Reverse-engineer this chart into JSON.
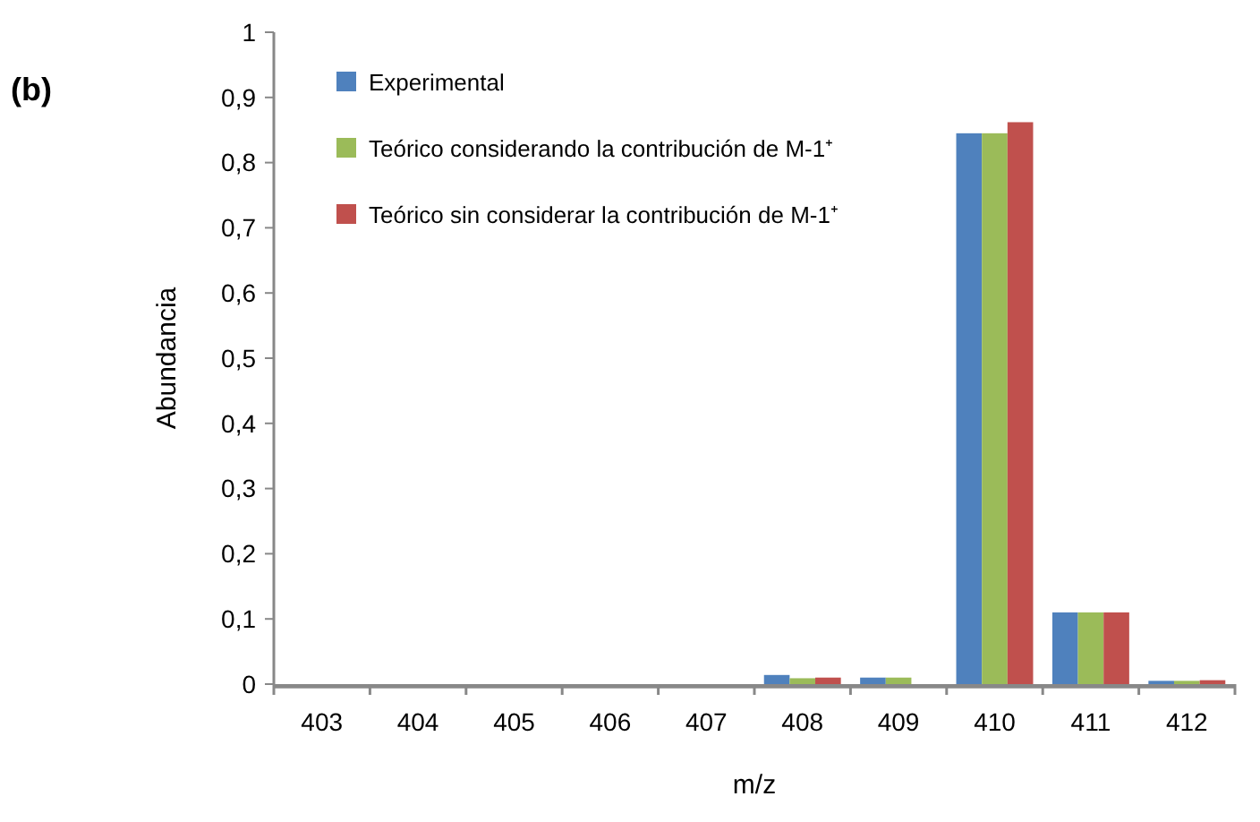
{
  "chart_data": {
    "type": "bar",
    "title": "(b)",
    "xlabel": "m/z",
    "ylabel": "Abundancia",
    "categories": [
      "403",
      "404",
      "405",
      "406",
      "407",
      "408",
      "409",
      "410",
      "411",
      "412"
    ],
    "series": [
      {
        "name": "Experimental",
        "color": "#4f81bd",
        "values": [
          0,
          0,
          0,
          0,
          0,
          0.014,
          0.01,
          0.845,
          0.11,
          0.005
        ]
      },
      {
        "name": "Teórico considerando la contribución de M-1⁺",
        "color": "#9bbb59",
        "values": [
          0,
          0,
          0,
          0,
          0,
          0.009,
          0.01,
          0.845,
          0.11,
          0.005
        ]
      },
      {
        "name": "Teórico sin considerar la contribución de M-1⁺",
        "color": "#c0504d",
        "values": [
          0,
          0,
          0,
          0,
          0,
          0.01,
          0,
          0.862,
          0.11,
          0.006
        ]
      }
    ],
    "ylim": [
      0,
      1
    ],
    "yticks": [
      0,
      {
        "value": 0.1,
        "label": "0,1"
      },
      {
        "value": 0.2,
        "label": "0,2"
      },
      {
        "value": 0.3,
        "label": "0,3"
      },
      {
        "value": 0.4,
        "label": "0,4"
      },
      {
        "value": 0.5,
        "label": "0,5"
      },
      {
        "value": 0.6,
        "label": "0,6"
      },
      {
        "value": 0.7,
        "label": "0,7"
      },
      {
        "value": 0.8,
        "label": "0,8"
      },
      {
        "value": 0.9,
        "label": "0,9"
      },
      1
    ],
    "legend": "top left",
    "grid": false
  }
}
